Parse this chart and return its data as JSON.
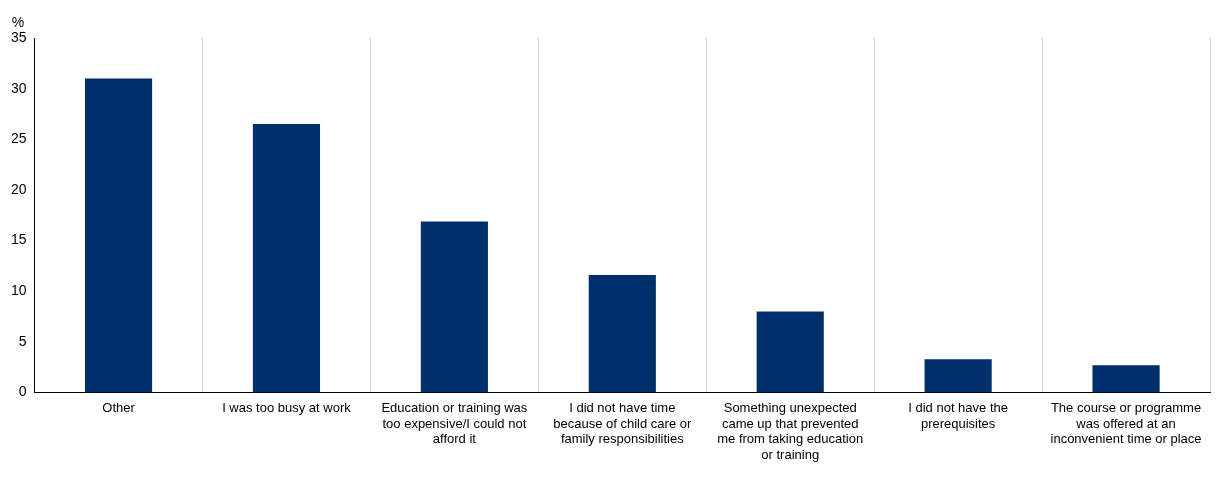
{
  "chart_data": {
    "type": "bar",
    "ylabel": "%",
    "categories": [
      "Other",
      "I was too busy at work",
      "Education or training was too expensive/I could not afford it",
      "I did not have time because of child care or family responsibilities",
      "Something unexpected came up that prevented me from taking education or training",
      "I did not have the prerequisites",
      "The course or programme was offered at an inconvenient time or place"
    ],
    "values": [
      31.0,
      26.5,
      16.9,
      11.6,
      8.0,
      3.3,
      2.7
    ],
    "color": "#002f6c",
    "ylim": [
      0,
      35
    ],
    "yticks": [
      0,
      5,
      10,
      15,
      20,
      25,
      30,
      35
    ],
    "grid": "x",
    "legend": false
  }
}
